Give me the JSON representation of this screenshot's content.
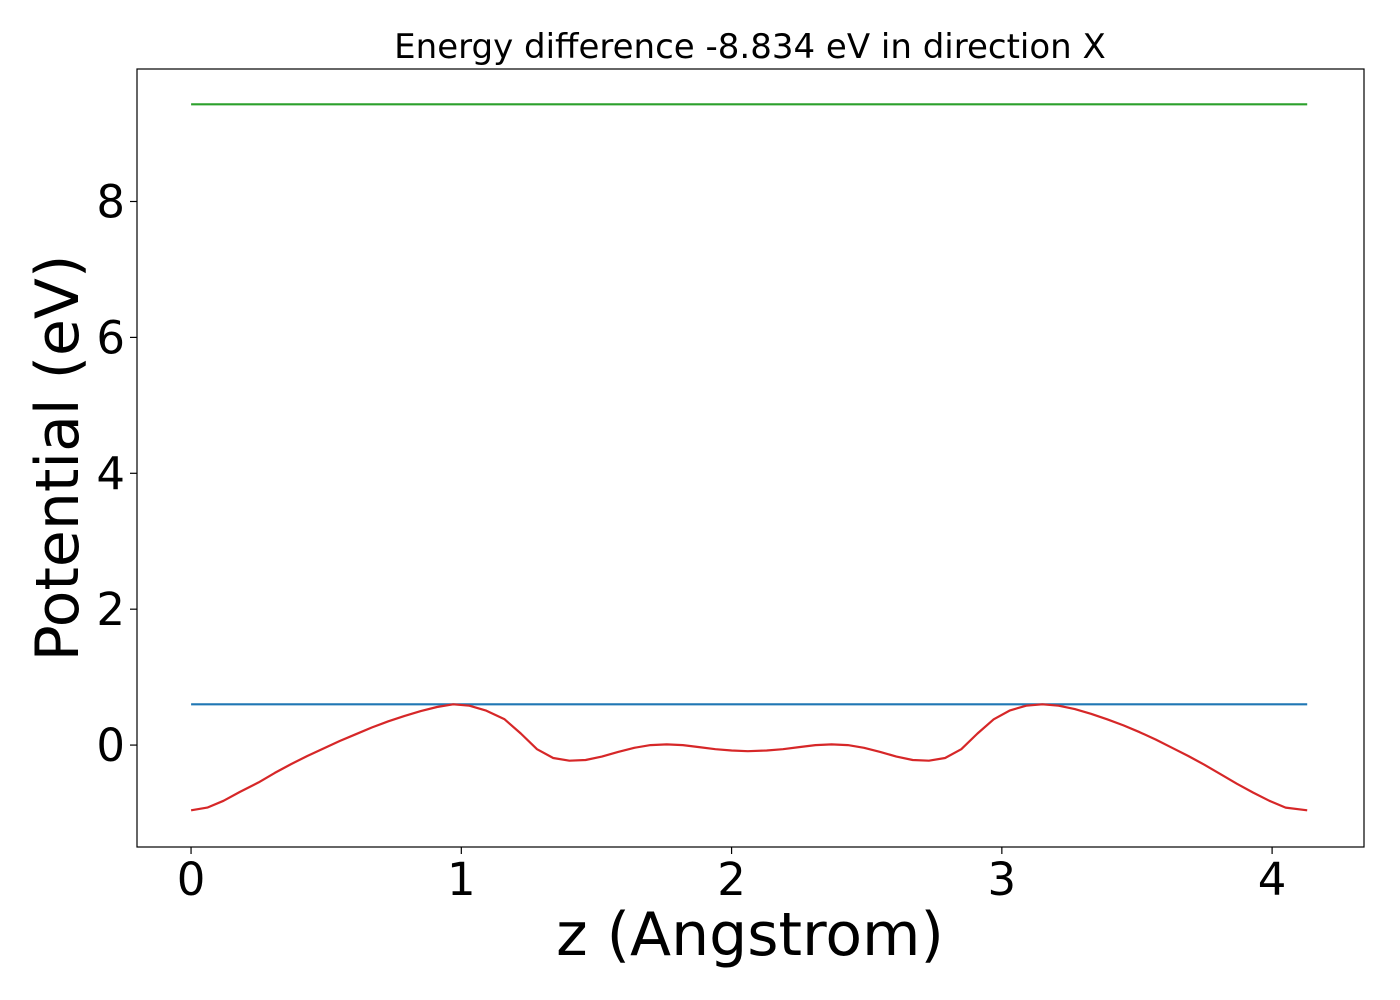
{
  "chart_data": {
    "type": "line",
    "title": "Energy difference -8.834 eV in direction X",
    "xlabel": "z (Angstrom)",
    "ylabel": "Potential (eV)",
    "xlim": [
      -0.2,
      4.34
    ],
    "ylim": [
      -1.5,
      9.95
    ],
    "xticks": [
      0,
      1,
      2,
      3,
      4
    ],
    "yticks": [
      0,
      2,
      4,
      6,
      8
    ],
    "grid": false,
    "series": [
      {
        "color": "#2ca02c",
        "x": [
          0,
          4.13
        ],
        "y": [
          9.43,
          9.43
        ]
      },
      {
        "color": "#1f77b4",
        "x": [
          0,
          4.13
        ],
        "y": [
          0.6,
          0.6
        ]
      },
      {
        "color": "#d62728",
        "x": [
          0,
          0.06,
          0.12,
          0.18,
          0.25,
          0.31,
          0.37,
          0.43,
          0.49,
          0.55,
          0.61,
          0.67,
          0.73,
          0.79,
          0.85,
          0.91,
          0.97,
          1.03,
          1.09,
          1.16,
          1.22,
          1.28,
          1.34,
          1.4,
          1.46,
          1.52,
          1.58,
          1.64,
          1.7,
          1.76,
          1.82,
          1.88,
          1.94,
          2.0,
          2.06,
          2.13,
          2.19,
          2.25,
          2.31,
          2.37,
          2.43,
          2.49,
          2.55,
          2.61,
          2.67,
          2.73,
          2.79,
          2.85,
          2.91,
          2.97,
          3.03,
          3.09,
          3.15,
          3.21,
          3.27,
          3.33,
          3.39,
          3.45,
          3.51,
          3.57,
          3.63,
          3.69,
          3.75,
          3.81,
          3.87,
          3.93,
          3.99,
          4.05,
          4.13
        ],
        "y": [
          -0.96,
          -0.92,
          -0.82,
          -0.69,
          -0.55,
          -0.41,
          -0.28,
          -0.16,
          -0.05,
          0.06,
          0.16,
          0.26,
          0.35,
          0.43,
          0.5,
          0.56,
          0.6,
          0.58,
          0.51,
          0.38,
          0.17,
          -0.06,
          -0.19,
          -0.23,
          -0.22,
          -0.17,
          -0.1,
          -0.04,
          0.0,
          0.01,
          0.0,
          -0.03,
          -0.06,
          -0.08,
          -0.09,
          -0.08,
          -0.06,
          -0.03,
          0.0,
          0.01,
          0.0,
          -0.04,
          -0.1,
          -0.17,
          -0.22,
          -0.23,
          -0.19,
          -0.06,
          0.17,
          0.38,
          0.51,
          0.58,
          0.6,
          0.58,
          0.53,
          0.46,
          0.38,
          0.29,
          0.19,
          0.08,
          -0.04,
          -0.16,
          -0.29,
          -0.43,
          -0.57,
          -0.7,
          -0.82,
          -0.92,
          -0.96
        ]
      }
    ]
  }
}
